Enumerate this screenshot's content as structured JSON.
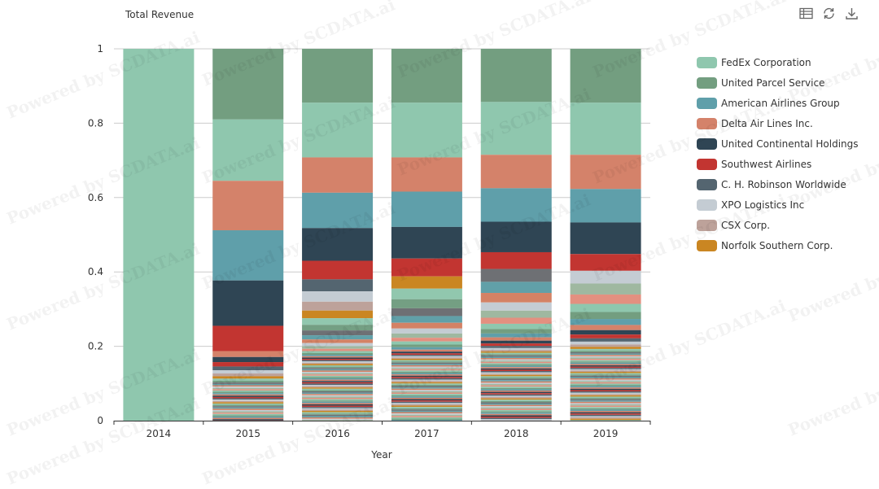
{
  "title": "Total Revenue",
  "watermark": "Powered by SCDATA.ai",
  "toolbar": {
    "icons": [
      "table-icon",
      "refresh-icon",
      "download-icon"
    ]
  },
  "legend": [
    {
      "name": "FedEx Corporation",
      "color": "#8fc7ae"
    },
    {
      "name": "United Parcel Service",
      "color": "#739e80"
    },
    {
      "name": "American Airlines Group",
      "color": "#5f9faa"
    },
    {
      "name": "Delta Air Lines Inc.",
      "color": "#d4826a"
    },
    {
      "name": "United Continental Holdings",
      "color": "#2f4554"
    },
    {
      "name": "Southwest Airlines",
      "color": "#c23531"
    },
    {
      "name": "C. H. Robinson Worldwide",
      "color": "#546570"
    },
    {
      "name": "XPO Logistics Inc",
      "color": "#c4ccd3"
    },
    {
      "name": "CSX Corp.",
      "color": "#bda29a"
    },
    {
      "name": "Norfolk Southern Corp.",
      "color": "#ca8622"
    }
  ],
  "chart_data": {
    "type": "bar",
    "stacked": true,
    "normalized": true,
    "categories": [
      "2014",
      "2015",
      "2016",
      "2017",
      "2018",
      "2019"
    ],
    "xlabel": "Year",
    "ylabel": "Total Revenue",
    "ylim": [
      0,
      1
    ],
    "yticks": [
      0,
      0.2,
      0.4,
      0.6,
      0.8,
      1
    ],
    "grid": true,
    "legend_position": "right",
    "series": [
      {
        "name": "United Parcel Service",
        "values": [
          0,
          0.19,
          0.145,
          0.145,
          0.143,
          0.145
        ]
      },
      {
        "name": "FedEx Corporation",
        "values": [
          1,
          0.165,
          0.147,
          0.147,
          0.142,
          0.14
        ]
      },
      {
        "name": "Delta Air Lines Inc.",
        "values": [
          0,
          0.133,
          0.095,
          0.092,
          0.09,
          0.092
        ]
      },
      {
        "name": "American Airlines Group",
        "values": [
          0,
          0.135,
          0.095,
          0.095,
          0.09,
          0.09
        ]
      },
      {
        "name": "United Continental Holdings",
        "values": [
          0,
          0.122,
          0.088,
          0.085,
          0.082,
          0.085
        ]
      },
      {
        "name": "Southwest Airlines",
        "values": [
          0,
          0.068,
          0.05,
          0.048,
          0.045,
          0.045
        ]
      }
    ]
  }
}
